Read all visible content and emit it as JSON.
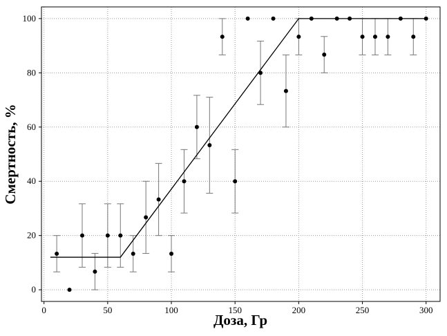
{
  "chart_data": {
    "type": "scatter",
    "xlabel": "Доза, Гр",
    "ylabel": "Смертность, %",
    "xlim": [
      -2,
      311
    ],
    "ylim": [
      -4.3,
      104.3
    ],
    "xticks": [
      0,
      50,
      100,
      150,
      200,
      250,
      300
    ],
    "yticks": [
      0,
      20,
      40,
      60,
      80,
      100
    ],
    "grid": true,
    "series": [
      {
        "type": "scatter",
        "color": "#000000",
        "error_color": "#777777",
        "x": [
          10,
          20,
          30,
          40,
          50,
          60,
          70,
          80,
          90,
          100,
          110,
          120,
          130,
          140,
          150,
          160,
          170,
          180,
          190,
          200,
          210,
          220,
          230,
          240,
          250,
          260,
          270,
          280,
          290,
          300
        ],
        "values": [
          13.3,
          0,
          20,
          6.7,
          20,
          20,
          13.3,
          26.7,
          33.3,
          13.3,
          40,
          60,
          53.3,
          93.3,
          40,
          100,
          80,
          100,
          73.3,
          93.3,
          100,
          86.7,
          100,
          100,
          93.3,
          93.3,
          93.3,
          100,
          93.3,
          100
        ],
        "errors": [
          6.7,
          null,
          11.7,
          6.7,
          11.7,
          11.7,
          6.7,
          13.3,
          13.3,
          6.7,
          11.7,
          11.7,
          17.7,
          6.7,
          11.7,
          null,
          11.7,
          null,
          13.3,
          6.7,
          null,
          6.7,
          null,
          null,
          6.7,
          6.7,
          6.7,
          null,
          6.7,
          null
        ]
      },
      {
        "type": "line",
        "color": "#000000",
        "x": [
          5,
          60,
          200,
          300
        ],
        "values": [
          12,
          12,
          100,
          100
        ]
      }
    ]
  }
}
